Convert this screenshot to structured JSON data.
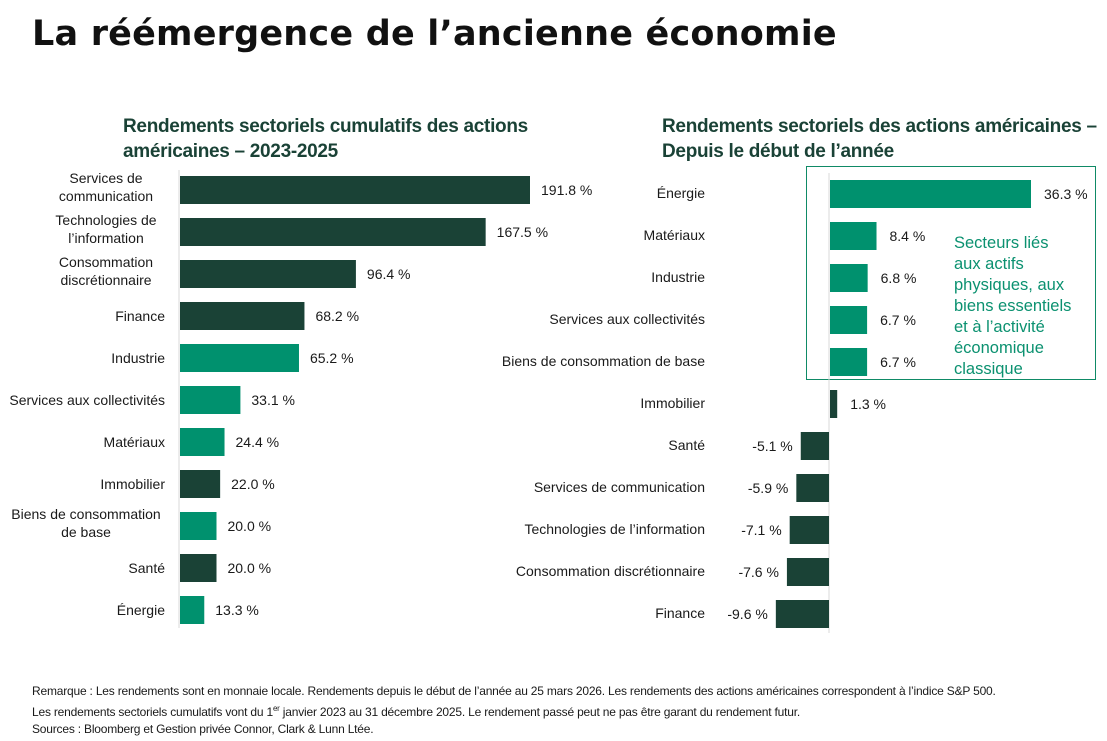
{
  "title": "La réémergence de l’ancienne économie",
  "colors": {
    "dark": "#1a4236",
    "accent": "#00916e",
    "axis": "#d9d9d9",
    "title_green": "#1a4236",
    "callout_text": "#0b9170",
    "callout_border": "#0f8a66"
  },
  "callout": {
    "lines": [
      "Secteurs liés",
      "aux actifs",
      "physiques, aux",
      "biens essentiels",
      "et à l’activité",
      "économique",
      "classique"
    ]
  },
  "footnotes": {
    "line1": "Remarque : Les rendements sont en monnaie locale. Rendements depuis le début de l’année au 25 mars 2026. Les rendements des actions américaines correspondent à l’indice S&P 500.",
    "line2_pre": "Les rendements sectoriels cumulatifs vont du 1",
    "line2_sup": "er",
    "line2_post": " janvier 2023 au 31 décembre 2025. Le rendement passé peut ne pas être garant du rendement futur.",
    "line3": "Sources : Bloomberg et Gestion privée Connor, Clark & Lunn Ltée."
  },
  "chart_data": [
    {
      "type": "bar",
      "orientation": "horizontal",
      "title": "Rendements sectoriels cumulatifs des actions américaines – 2023-2025",
      "unit": "%",
      "categories": [
        [
          "Services de",
          "communication"
        ],
        [
          "Technologies de",
          "l’information"
        ],
        [
          "Consommation",
          "discrétionnaire"
        ],
        [
          "Finance"
        ],
        [
          "Industrie"
        ],
        [
          "Services aux collectivités"
        ],
        [
          "Matériaux"
        ],
        [
          "Immobilier"
        ],
        [
          "Biens de consommation",
          "de base"
        ],
        [
          "Santé"
        ],
        [
          "Énergie"
        ]
      ],
      "values": [
        191.8,
        167.5,
        96.4,
        68.2,
        65.2,
        33.1,
        24.4,
        22.0,
        20.0,
        20.0,
        13.3
      ],
      "labels": [
        "191.8 %",
        "167.5 %",
        "96.4 %",
        "68.2 %",
        "65.2 %",
        "33.1 %",
        "24.4 %",
        "22.0 %",
        "20.0 %",
        "20.0 %",
        "13.3 %"
      ],
      "highlight": [
        false,
        false,
        false,
        false,
        true,
        true,
        true,
        false,
        true,
        false,
        true
      ],
      "xlim": [
        0,
        200
      ],
      "grid": false,
      "legend": "none"
    },
    {
      "type": "bar",
      "orientation": "horizontal",
      "title": "Rendements sectoriels des actions américaines – Depuis le début de l’année",
      "unit": "%",
      "categories": [
        [
          "Énergie"
        ],
        [
          "Matériaux"
        ],
        [
          "Industrie"
        ],
        [
          "Services aux collectivités"
        ],
        [
          "Biens de consommation de base"
        ],
        [
          "Immobilier"
        ],
        [
          "Santé"
        ],
        [
          "Services de communication"
        ],
        [
          "Technologies de l’information"
        ],
        [
          "Consommation discrétionnaire"
        ],
        [
          "Finance"
        ]
      ],
      "values": [
        36.3,
        8.4,
        6.8,
        6.7,
        6.7,
        1.3,
        -5.1,
        -5.9,
        -7.1,
        -7.6,
        -9.6
      ],
      "labels": [
        "36.3 %",
        "8.4 %",
        "6.8 %",
        "6.7 %",
        "6.7 %",
        "1.3 %",
        "-5.1 %",
        "-5.9 %",
        "-7.1 %",
        "-7.6 %",
        "-9.6 %"
      ],
      "highlight": [
        true,
        true,
        true,
        true,
        true,
        false,
        false,
        false,
        false,
        false,
        false
      ],
      "xlim": [
        -10,
        40
      ],
      "grid": false,
      "legend": "none",
      "annotation": "Secteurs liés aux actifs physiques, aux biens essentiels et à l’activité économique classique"
    }
  ]
}
